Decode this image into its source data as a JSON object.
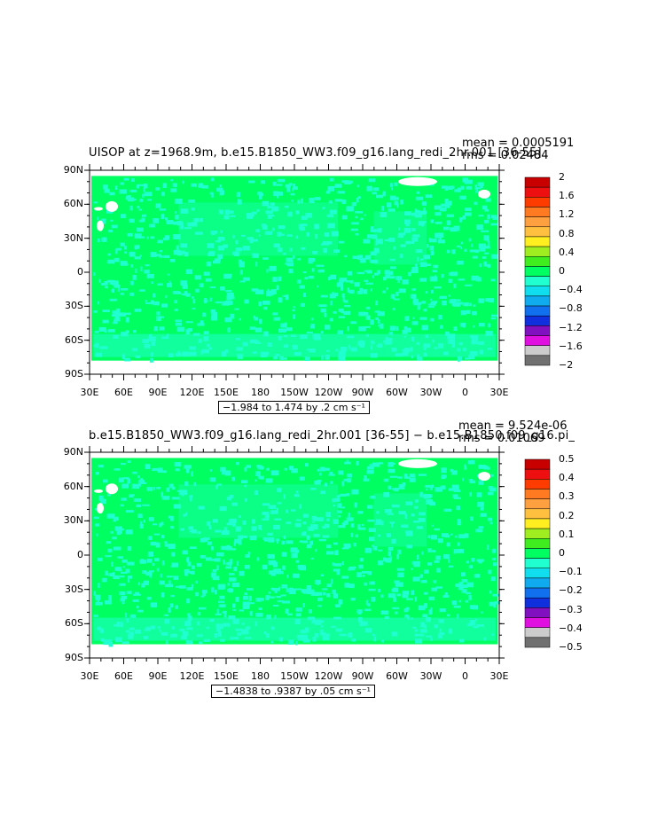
{
  "panels": [
    {
      "title": "UISOP at z=1968.9m, b.e15.B1850_WW3.f09_g16.lang_redi_2hr.001 [36-55]",
      "stat_mean": "mean = 0.0005191",
      "stat_rms": "rms = 0.02484",
      "range_label": "−1.984 to 1.474 by .2 cm s⁻¹",
      "colorbar_labels": [
        "2",
        "1.6",
        "1.2",
        "0.8",
        "0.4",
        "0",
        "−0.4",
        "−0.8",
        "−1.2",
        "−1.6",
        "−2"
      ]
    },
    {
      "title": "b.e15.B1850_WW3.f09_g16.lang_redi_2hr.001 [36-55] − b.e15.B1850.f09_g16.pi_",
      "stat_mean": "mean = 9.524e-06",
      "stat_rms": "rms = 0.01069",
      "range_label": "−1.4838 to .9387 by .05 cm s⁻¹",
      "colorbar_labels": [
        "0.5",
        "0.4",
        "0.3",
        "0.2",
        "0.1",
        "0",
        "−0.1",
        "−0.2",
        "−0.3",
        "−0.4",
        "−0.5"
      ]
    }
  ],
  "lat_labels": [
    "90N",
    "60N",
    "30N",
    "0",
    "30S",
    "60S",
    "90S"
  ],
  "lon_labels": [
    "30E",
    "60E",
    "90E",
    "120E",
    "150E",
    "180",
    "150W",
    "120W",
    "90W",
    "60W",
    "30W",
    "0",
    "30E"
  ],
  "colorbar_colors": [
    "#c80000",
    "#ee1010",
    "#ff3c00",
    "#ff7a20",
    "#ffa040",
    "#ffc040",
    "#ffee20",
    "#a0ee20",
    "#40ee20",
    "#00ff60",
    "#20ffd0",
    "#10ddee",
    "#10aaee",
    "#1070ee",
    "#1030dd",
    "#8010c0",
    "#e010e0",
    "#cccccc",
    "#707070"
  ],
  "field_colors": {
    "land": "#ffffff",
    "ocean_main": "#00ff60",
    "ocean_neg": "#20ffd0"
  }
}
